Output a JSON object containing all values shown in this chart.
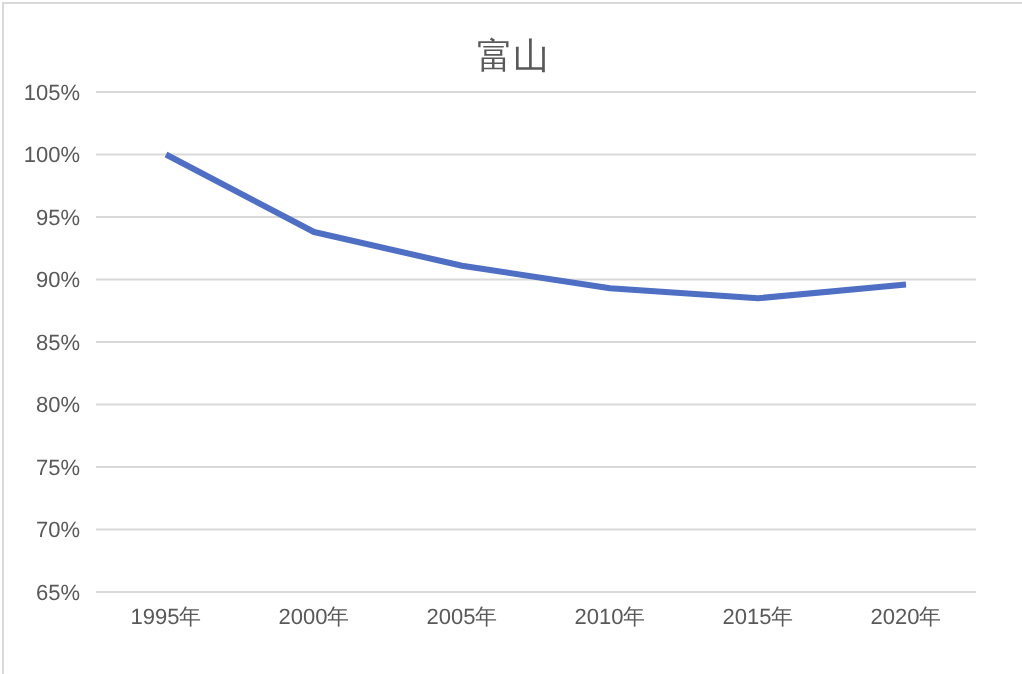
{
  "chart_data": {
    "type": "line",
    "title": "富山",
    "categories": [
      "1995年",
      "2000年",
      "2005年",
      "2010年",
      "2015年",
      "2020年"
    ],
    "series": [
      {
        "color": "#4f6fc4",
        "values": [
          100,
          93.8,
          91.1,
          89.3,
          88.5,
          89.6
        ]
      }
    ],
    "ylim": [
      65,
      105
    ],
    "yticks": [
      {
        "value": 65,
        "label": "65%"
      },
      {
        "value": 70,
        "label": "70%"
      },
      {
        "value": 75,
        "label": "75%"
      },
      {
        "value": 80,
        "label": "80%"
      },
      {
        "value": 85,
        "label": "85%"
      },
      {
        "value": 90,
        "label": "90%"
      },
      {
        "value": 95,
        "label": "95%"
      },
      {
        "value": 100,
        "label": "100%"
      },
      {
        "value": 105,
        "label": "105%"
      }
    ],
    "grid": "y",
    "legend": false,
    "marker": "none"
  }
}
